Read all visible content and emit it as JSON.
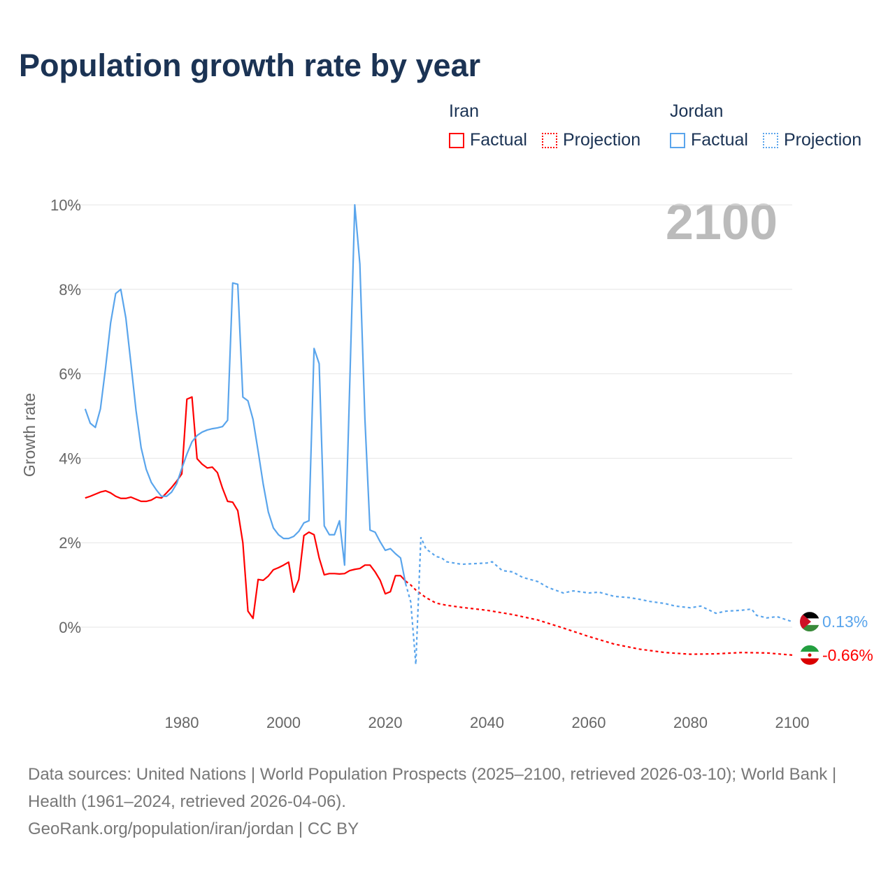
{
  "chart_data": {
    "type": "line",
    "title": "Population growth rate by year",
    "ylabel": "Growth rate",
    "xlabel": "",
    "xlim": [
      1961,
      2100
    ],
    "ylim": [
      -1.5,
      10
    ],
    "x_ticks": [
      "1980",
      "2000",
      "2020",
      "2040",
      "2060",
      "2080",
      "2100"
    ],
    "y_ticks": [
      "0%",
      "2%",
      "4%",
      "6%",
      "8%",
      "10%"
    ],
    "grid": true,
    "year_label": "2100",
    "legend": {
      "placement": "top-right",
      "groups": [
        {
          "name": "Iran",
          "factual": "Factual",
          "projection": "Projection"
        },
        {
          "name": "Jordan",
          "factual": "Factual",
          "projection": "Projection"
        }
      ]
    },
    "series": [
      {
        "name": "Iran",
        "color": "#ff0000",
        "end_label": "-0.66%",
        "flag": "iran-flag",
        "factual": {
          "x": [
            1961,
            1962,
            1963,
            1964,
            1965,
            1966,
            1967,
            1968,
            1969,
            1970,
            1971,
            1972,
            1973,
            1974,
            1975,
            1976,
            1977,
            1978,
            1979,
            1980,
            1981,
            1982,
            1983,
            1984,
            1985,
            1986,
            1987,
            1988,
            1989,
            1990,
            1991,
            1992,
            1993,
            1994,
            1995,
            1996,
            1997,
            1998,
            1999,
            2000,
            2001,
            2002,
            2003,
            2004,
            2005,
            2006,
            2007,
            2008,
            2009,
            2010,
            2011,
            2012,
            2013,
            2014,
            2015,
            2016,
            2017,
            2018,
            2019,
            2020,
            2021,
            2022,
            2023,
            2024
          ],
          "y": [
            3.06,
            3.1,
            3.15,
            3.2,
            3.23,
            3.18,
            3.1,
            3.05,
            3.05,
            3.08,
            3.03,
            2.98,
            2.98,
            3.01,
            3.08,
            3.06,
            3.18,
            3.31,
            3.46,
            3.63,
            5.4,
            5.45,
            3.99,
            3.86,
            3.77,
            3.79,
            3.66,
            3.29,
            2.98,
            2.96,
            2.76,
            2.0,
            0.38,
            0.21,
            1.13,
            1.11,
            1.21,
            1.36,
            1.41,
            1.47,
            1.54,
            0.83,
            1.13,
            2.17,
            2.25,
            2.19,
            1.64,
            1.24,
            1.27,
            1.27,
            1.26,
            1.27,
            1.34,
            1.37,
            1.39,
            1.47,
            1.47,
            1.31,
            1.11,
            0.79,
            0.84,
            1.22,
            1.22,
            1.09
          ]
        },
        "projection": {
          "x": [
            2025,
            2026,
            2028,
            2030,
            2032,
            2035,
            2040,
            2045,
            2050,
            2055,
            2060,
            2065,
            2070,
            2075,
            2080,
            2085,
            2090,
            2095,
            2100
          ],
          "y": [
            1.0,
            0.88,
            0.7,
            0.57,
            0.52,
            0.47,
            0.4,
            0.3,
            0.17,
            -0.02,
            -0.22,
            -0.4,
            -0.52,
            -0.6,
            -0.64,
            -0.63,
            -0.6,
            -0.61,
            -0.66
          ]
        }
      },
      {
        "name": "Jordan",
        "color": "#5aa5ec",
        "end_label": "0.13%",
        "flag": "jordan-flag",
        "factual": {
          "x": [
            1961,
            1962,
            1963,
            1964,
            1965,
            1966,
            1967,
            1968,
            1969,
            1970,
            1971,
            1972,
            1973,
            1974,
            1975,
            1976,
            1977,
            1978,
            1979,
            1980,
            1981,
            1982,
            1983,
            1984,
            1985,
            1986,
            1987,
            1988,
            1989,
            1990,
            1991,
            1992,
            1993,
            1994,
            1995,
            1996,
            1997,
            1998,
            1999,
            2000,
            2001,
            2002,
            2003,
            2004,
            2005,
            2006,
            2007,
            2008,
            2009,
            2010,
            2011,
            2012,
            2013,
            2014,
            2015,
            2016,
            2017,
            2018,
            2019,
            2020,
            2021,
            2022,
            2023,
            2024
          ],
          "y": [
            5.17,
            4.83,
            4.73,
            5.17,
            6.13,
            7.2,
            7.9,
            8.0,
            7.32,
            6.24,
            5.13,
            4.25,
            3.74,
            3.43,
            3.25,
            3.1,
            3.1,
            3.2,
            3.4,
            3.76,
            4.1,
            4.39,
            4.54,
            4.62,
            4.67,
            4.7,
            4.72,
            4.75,
            4.9,
            8.15,
            8.12,
            5.45,
            5.36,
            4.92,
            4.17,
            3.39,
            2.73,
            2.35,
            2.19,
            2.1,
            2.1,
            2.15,
            2.27,
            2.47,
            2.52,
            6.6,
            6.24,
            2.4,
            2.19,
            2.19,
            2.52,
            1.47,
            5.7,
            10.0,
            8.6,
            4.92,
            2.3,
            2.25,
            2.02,
            1.82,
            1.86,
            1.74,
            1.64,
            1.03
          ]
        },
        "projection": {
          "x": [
            2025,
            2026,
            2027,
            2028,
            2029,
            2030,
            2031,
            2032,
            2035,
            2040,
            2041,
            2043,
            2045,
            2047,
            2050,
            2052,
            2055,
            2057,
            2060,
            2062,
            2065,
            2068,
            2070,
            2072,
            2075,
            2077,
            2080,
            2082,
            2085,
            2087,
            2090,
            2092,
            2093,
            2095,
            2097,
            2100
          ],
          "y": [
            0.6,
            -0.88,
            2.13,
            1.85,
            1.77,
            1.67,
            1.65,
            1.55,
            1.49,
            1.52,
            1.55,
            1.34,
            1.31,
            1.18,
            1.08,
            0.94,
            0.81,
            0.86,
            0.81,
            0.83,
            0.73,
            0.7,
            0.66,
            0.61,
            0.56,
            0.5,
            0.46,
            0.5,
            0.33,
            0.38,
            0.4,
            0.43,
            0.28,
            0.22,
            0.25,
            0.13
          ]
        }
      }
    ]
  },
  "footer": {
    "sources": "Data sources: United Nations | World Population Prospects (2025–2100, retrieved 2026-03-10); World Bank | Health (1961–2024, retrieved 2026-04-06).",
    "credit": "GeoRank.org/population/iran/jordan | CC BY"
  }
}
